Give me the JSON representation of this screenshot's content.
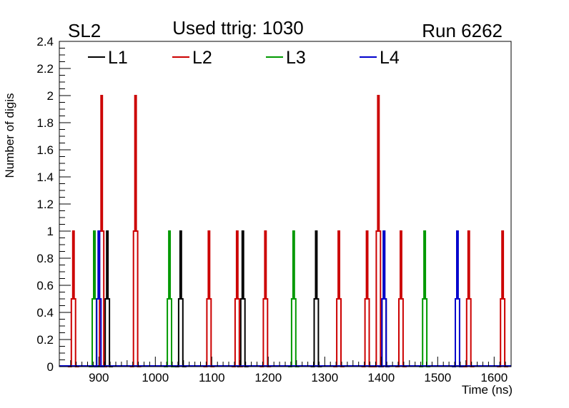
{
  "texts": {
    "left_label": "SL2",
    "center_title": "Used ttrig: 1030",
    "right_label": "Run 6262"
  },
  "chart_data": {
    "type": "line",
    "title": "Used ttrig: 1030",
    "xlabel": "Time (ns)",
    "ylabel": "Number of digis",
    "xlim": [
      830,
      1630
    ],
    "ylim": [
      0,
      2.4
    ],
    "xticks": [
      900,
      1000,
      1100,
      1200,
      1300,
      1400,
      1500,
      1600
    ],
    "yticks": [
      0,
      0.2,
      0.4,
      0.6,
      0.8,
      1,
      1.2,
      1.4,
      1.6,
      1.8,
      2,
      2.2,
      2.4
    ],
    "legend_position": "top",
    "series": [
      {
        "name": "L1",
        "color": "#000000",
        "x": [
          915,
          1045,
          1155,
          1285,
          1405
        ],
        "y": [
          1,
          1,
          1,
          1,
          1
        ]
      },
      {
        "name": "L2",
        "color": "#cc0000",
        "x": [
          855,
          905,
          965,
          1095,
          1145,
          1195,
          1325,
          1375,
          1395,
          1435,
          1555,
          1615
        ],
        "y": [
          1,
          2,
          2,
          1,
          1,
          1,
          1,
          1,
          2,
          1,
          1,
          1
        ]
      },
      {
        "name": "L3",
        "color": "#009900",
        "x": [
          892,
          1025,
          1245,
          1477
        ],
        "y": [
          1,
          1,
          1,
          1
        ]
      },
      {
        "name": "L4",
        "color": "#0000cc",
        "x": [
          900,
          1405,
          1535
        ],
        "y": [
          1,
          1,
          1
        ]
      }
    ]
  }
}
